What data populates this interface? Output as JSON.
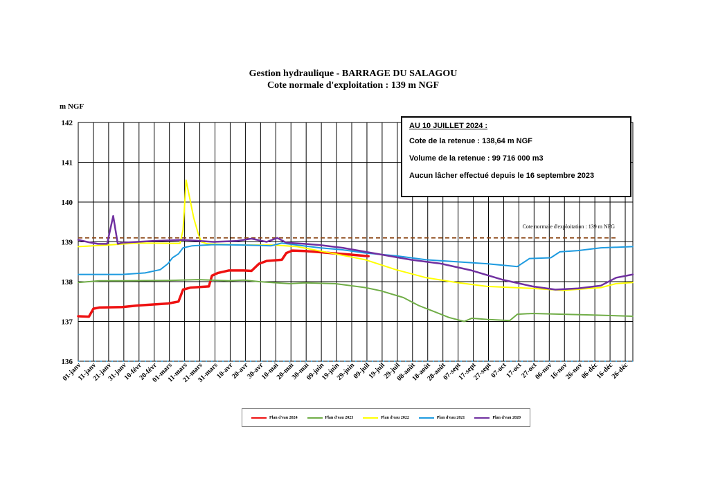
{
  "chart_data": {
    "type": "line",
    "title": "Gestion hydraulique - BARRAGE DU SALAGOU",
    "subtitle": "Cote normale d'exploitation : 139 m NGF",
    "ylabel": "m NGF",
    "xlabel": "",
    "ylim": [
      136,
      142
    ],
    "yticks": [
      "136",
      "137",
      "138",
      "139",
      "140",
      "141",
      "142"
    ],
    "xlim": [
      1,
      366
    ],
    "grid": true,
    "legend_position": "bottom",
    "categories": [
      "01-janv",
      "11-janv",
      "21-janv",
      "31-janv",
      "10-févr",
      "20-févr",
      "01-mars",
      "11-mars",
      "21-mars",
      "31-mars",
      "10-avr",
      "20-avr",
      "30-avr",
      "10-mai",
      "20-mai",
      "30-mai",
      "09-juin",
      "19-juin",
      "29-juin",
      "09-juil",
      "19-juil",
      "29-juil",
      "08-août",
      "18-août",
      "28-août",
      "07-sept",
      "17-sept",
      "27-sept",
      "07-oct",
      "17-oct",
      "27-oct",
      "06-nov",
      "16-nov",
      "26-nov",
      "06-déc",
      "16-déc",
      "26-déc"
    ],
    "reference_line": {
      "y": 139.1,
      "label": "Cote normale d'exploitation : 139 m NFG",
      "color": "#8B4513"
    },
    "annotation": {
      "heading": "AU 10 JUILLET 2024 :",
      "line1": "Cote de la retenue : 138,64 m NGF",
      "line2": "Volume de la retenue : 99 716 000 m3",
      "line3": "Aucun lâcher effectué depuis le 16 septembre 2023"
    },
    "series": [
      {
        "name": "Plan d'eau 2024",
        "color": "#ee1111",
        "width": 3.5,
        "points": [
          [
            1,
            137.13
          ],
          [
            8,
            137.12
          ],
          [
            11,
            137.32
          ],
          [
            15,
            137.35
          ],
          [
            30,
            137.36
          ],
          [
            40,
            137.4
          ],
          [
            60,
            137.45
          ],
          [
            67,
            137.5
          ],
          [
            70,
            137.8
          ],
          [
            75,
            137.85
          ],
          [
            87,
            137.88
          ],
          [
            89,
            138.15
          ],
          [
            93,
            138.22
          ],
          [
            100,
            138.28
          ],
          [
            110,
            138.28
          ],
          [
            115,
            138.27
          ],
          [
            120,
            138.45
          ],
          [
            125,
            138.52
          ],
          [
            135,
            138.55
          ],
          [
            138,
            138.72
          ],
          [
            142,
            138.78
          ],
          [
            150,
            138.77
          ],
          [
            160,
            138.74
          ],
          [
            170,
            138.71
          ],
          [
            180,
            138.68
          ],
          [
            192,
            138.64
          ]
        ]
      },
      {
        "name": "Plan d'eau 2023",
        "color": "#70ad47",
        "width": 2,
        "points": [
          [
            1,
            137.98
          ],
          [
            15,
            138.02
          ],
          [
            30,
            138.02
          ],
          [
            60,
            138.03
          ],
          [
            80,
            138.05
          ],
          [
            100,
            138.02
          ],
          [
            110,
            138.04
          ],
          [
            120,
            138.0
          ],
          [
            140,
            137.95
          ],
          [
            150,
            137.97
          ],
          [
            170,
            137.95
          ],
          [
            190,
            137.85
          ],
          [
            200,
            137.77
          ],
          [
            215,
            137.6
          ],
          [
            225,
            137.4
          ],
          [
            235,
            137.25
          ],
          [
            245,
            137.1
          ],
          [
            255,
            137.0
          ],
          [
            260,
            137.08
          ],
          [
            270,
            137.05
          ],
          [
            285,
            137.02
          ],
          [
            290,
            137.18
          ],
          [
            300,
            137.2
          ],
          [
            320,
            137.18
          ],
          [
            340,
            137.16
          ],
          [
            366,
            137.13
          ]
        ]
      },
      {
        "name": "Plan d'eau 2022",
        "color": "#ffff00",
        "width": 2,
        "points": [
          [
            1,
            138.88
          ],
          [
            20,
            138.92
          ],
          [
            40,
            138.97
          ],
          [
            68,
            138.96
          ],
          [
            70,
            139.3
          ],
          [
            72,
            140.55
          ],
          [
            77,
            139.6
          ],
          [
            80,
            139.2
          ],
          [
            82,
            139.0
          ],
          [
            86,
            138.95
          ],
          [
            110,
            138.92
          ],
          [
            130,
            138.92
          ],
          [
            145,
            138.88
          ],
          [
            170,
            138.7
          ],
          [
            190,
            138.55
          ],
          [
            210,
            138.3
          ],
          [
            230,
            138.1
          ],
          [
            250,
            137.98
          ],
          [
            270,
            137.88
          ],
          [
            300,
            137.83
          ],
          [
            320,
            137.78
          ],
          [
            345,
            137.85
          ],
          [
            355,
            137.95
          ],
          [
            366,
            137.98
          ]
        ]
      },
      {
        "name": "Plan d'eau 2021",
        "color": "#1e9be0",
        "width": 2,
        "points": [
          [
            1,
            138.18
          ],
          [
            15,
            138.18
          ],
          [
            30,
            138.18
          ],
          [
            45,
            138.22
          ],
          [
            55,
            138.3
          ],
          [
            60,
            138.45
          ],
          [
            63,
            138.6
          ],
          [
            67,
            138.7
          ],
          [
            70,
            138.85
          ],
          [
            76,
            138.9
          ],
          [
            90,
            138.93
          ],
          [
            110,
            138.92
          ],
          [
            128,
            138.9
          ],
          [
            135,
            138.97
          ],
          [
            145,
            138.92
          ],
          [
            160,
            138.85
          ],
          [
            175,
            138.8
          ],
          [
            190,
            138.72
          ],
          [
            210,
            138.65
          ],
          [
            230,
            138.55
          ],
          [
            250,
            138.5
          ],
          [
            270,
            138.45
          ],
          [
            290,
            138.38
          ],
          [
            298,
            138.58
          ],
          [
            312,
            138.6
          ],
          [
            318,
            138.75
          ],
          [
            330,
            138.78
          ],
          [
            345,
            138.85
          ],
          [
            366,
            138.88
          ]
        ]
      },
      {
        "name": "Plan d'eau 2020",
        "color": "#7030a0",
        "width": 2.5,
        "points": [
          [
            1,
            139.05
          ],
          [
            8,
            138.99
          ],
          [
            14,
            138.95
          ],
          [
            20,
            138.95
          ],
          [
            24,
            139.65
          ],
          [
            27,
            138.95
          ],
          [
            30,
            138.98
          ],
          [
            50,
            139.02
          ],
          [
            70,
            139.05
          ],
          [
            90,
            139.0
          ],
          [
            105,
            139.02
          ],
          [
            115,
            139.08
          ],
          [
            125,
            139.0
          ],
          [
            132,
            139.1
          ],
          [
            138,
            138.98
          ],
          [
            150,
            138.95
          ],
          [
            160,
            138.92
          ],
          [
            175,
            138.85
          ],
          [
            190,
            138.75
          ],
          [
            205,
            138.65
          ],
          [
            220,
            138.55
          ],
          [
            240,
            138.45
          ],
          [
            260,
            138.28
          ],
          [
            280,
            138.05
          ],
          [
            300,
            137.88
          ],
          [
            315,
            137.8
          ],
          [
            330,
            137.83
          ],
          [
            345,
            137.9
          ],
          [
            355,
            138.1
          ],
          [
            366,
            138.18
          ]
        ]
      }
    ]
  }
}
